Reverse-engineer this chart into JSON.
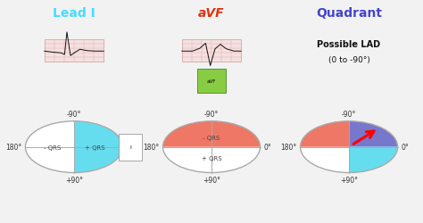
{
  "bg_color": "#f2f2f2",
  "title1": "Lead I",
  "title2": "aVF",
  "title3": "Quadrant",
  "title1_color": "#44ddff",
  "title2_color": "#dd3311",
  "title3_color": "#4444cc",
  "subtitle3": "Possible LAD",
  "subtitle3b": "(0 to -90°)",
  "cyan_color": "#66ddee",
  "red_color": "#ee7766",
  "blue_color": "#7777cc",
  "white_color": "#ffffff",
  "label_neg90": "-90°",
  "label_pos90": "+90°",
  "label_180": "180°",
  "label_0": "0°",
  "c1x": 0.175,
  "c1y": 0.34,
  "cr": 0.115,
  "c2x": 0.5,
  "c2y": 0.34,
  "c3x": 0.825,
  "c3y": 0.34
}
